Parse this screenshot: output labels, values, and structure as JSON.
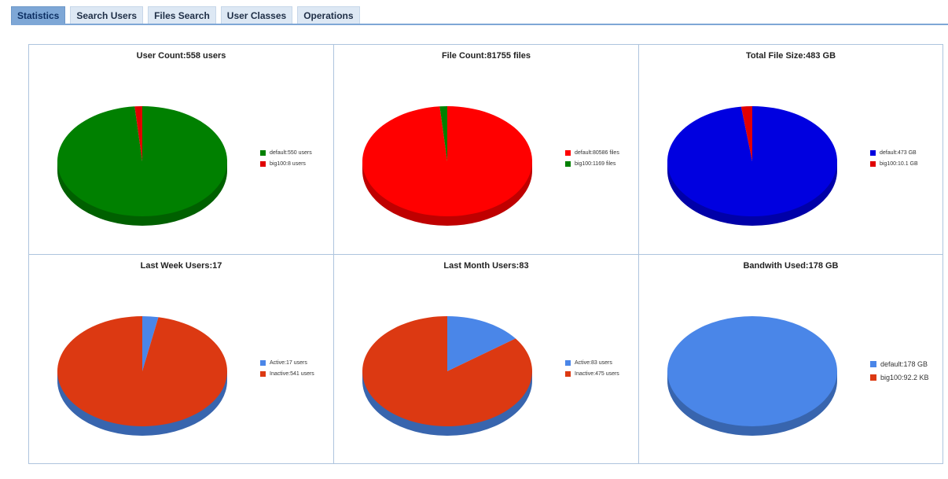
{
  "tabs": [
    {
      "label": "Statistics",
      "active": true
    },
    {
      "label": "Search Users",
      "active": false
    },
    {
      "label": "Files Search",
      "active": false
    },
    {
      "label": "User Classes",
      "active": false
    },
    {
      "label": "Operations",
      "active": false
    }
  ],
  "chart_data": [
    {
      "type": "pie",
      "title": "User Count:558 users",
      "slices": [
        {
          "label": "default:550 users",
          "value": 550,
          "color": "#008000"
        },
        {
          "label": "big100:8 users",
          "value": 8,
          "color": "#e00000"
        }
      ],
      "legend": "right"
    },
    {
      "type": "pie",
      "title": "File Count:81755 files",
      "slices": [
        {
          "label": "default:80586 files",
          "value": 80586,
          "color": "#ff0000"
        },
        {
          "label": "big100:1169 files",
          "value": 1169,
          "color": "#008000"
        }
      ],
      "legend": "right"
    },
    {
      "type": "pie",
      "title": "Total File Size:483 GB",
      "slices": [
        {
          "label": "default:473 GB",
          "value": 473,
          "color": "#0000e0"
        },
        {
          "label": "big100:10.1 GB",
          "value": 10.1,
          "color": "#e00000"
        }
      ],
      "legend": "right"
    },
    {
      "type": "pie",
      "title": "Last Week Users:17",
      "slices": [
        {
          "label": "Active:17 users",
          "value": 17,
          "color": "#4a86e8"
        },
        {
          "label": "Inactive:541 users",
          "value": 541,
          "color": "#dc3912"
        }
      ],
      "legend": "right"
    },
    {
      "type": "pie",
      "title": "Last Month Users:83",
      "slices": [
        {
          "label": "Active:83 users",
          "value": 83,
          "color": "#4a86e8"
        },
        {
          "label": "Inactive:475 users",
          "value": 475,
          "color": "#dc3912"
        }
      ],
      "legend": "right"
    },
    {
      "type": "pie",
      "title": "Bandwith Used:178 GB",
      "slices": [
        {
          "label": "default:178 GB",
          "value": 178,
          "color": "#4a86e8"
        },
        {
          "label": "big100:92.2 KB",
          "value": 9.23e-05,
          "color": "#dc3912"
        }
      ],
      "legend": "right"
    }
  ]
}
